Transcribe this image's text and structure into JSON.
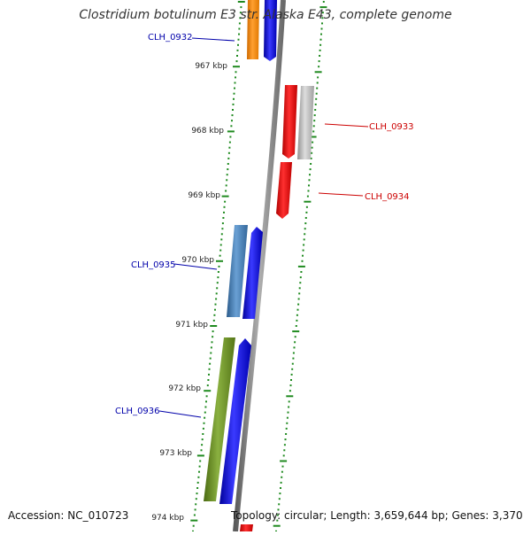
{
  "title": "Clostridium botulinum E3 str. Alaska E43, complete genome",
  "accession": "Accession: NC_010723",
  "topology": "Topology: circular; Length: 3,659,644 bp; Genes: 3,370",
  "ruler": [
    "967 kbp",
    "968 kbp",
    "969 kbp",
    "970 kbp",
    "971 kbp",
    "972 kbp",
    "973 kbp",
    "974 kbp"
  ],
  "genes": {
    "clh0932": "CLH_0932",
    "clh0933": "CLH_0933",
    "clh0934": "CLH_0934",
    "clh0935": "CLH_0935",
    "clh0936": "CLH_0936"
  },
  "colors": {
    "blue": "#0000ee",
    "red": "#ff0000",
    "orange": "#ff8c00",
    "grey": "#b8b8b8",
    "steel": "#4682b4",
    "olive": "#6b8e23",
    "backbone": "#8a8a8a",
    "tick": "#1f8a1f",
    "label_blue": "#0000aa",
    "label_red": "#cc0000"
  }
}
